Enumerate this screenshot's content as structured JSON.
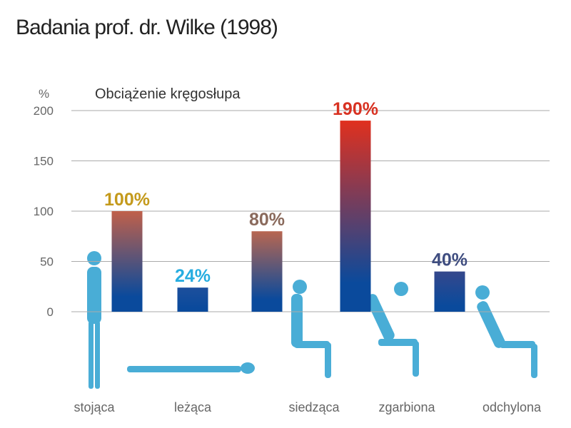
{
  "chart_data": {
    "type": "bar",
    "title": "Badania prof. dr. Wilke (1998)",
    "subtitle": "Obciążenie kręgosłupa",
    "y_label": "%",
    "categories": [
      "stojąca",
      "leżąca",
      "siedząca",
      "zgarbiona",
      "odchylona"
    ],
    "values": [
      100,
      24,
      80,
      190,
      40
    ],
    "value_labels": [
      "100%",
      "24%",
      "80%",
      "190%",
      "40%"
    ],
    "value_label_colors": [
      "#c49a1c",
      "#27ade0",
      "#8a6a5c",
      "#d83222",
      "#3f4d80"
    ],
    "colors": [
      "#c0604a",
      "#1d4f9c",
      "#b86650",
      "#e0301e",
      "#35488c"
    ],
    "base_color": "#0a4a9c",
    "ylim": [
      0,
      200
    ],
    "yticks": [
      0,
      50,
      100,
      150,
      200
    ],
    "grid": true
  }
}
